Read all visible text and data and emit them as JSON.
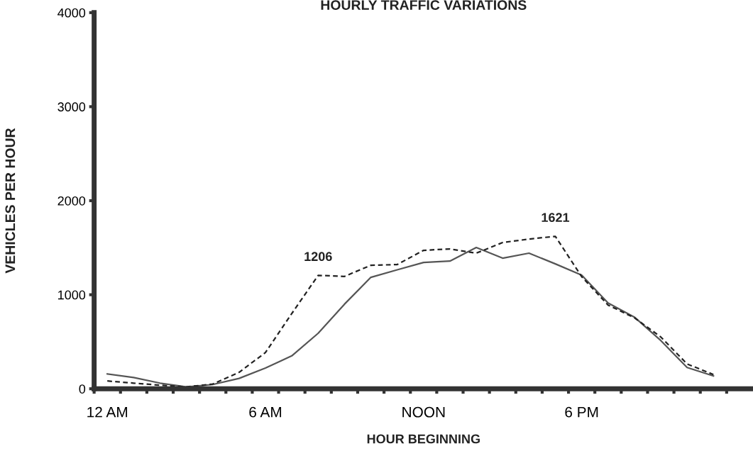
{
  "chart_data": {
    "type": "line",
    "title": "HOURLY TRAFFIC VARIATIONS",
    "xlabel": "HOUR BEGINNING",
    "ylabel": "VEHICLES PER HOUR",
    "categories": [
      "12 AM",
      null,
      null,
      null,
      null,
      null,
      "6 AM",
      null,
      null,
      null,
      null,
      null,
      "NOON",
      null,
      null,
      null,
      null,
      null,
      "6 PM",
      null,
      null,
      null,
      null,
      null
    ],
    "series": [
      {
        "color": "#555555",
        "line_style": "solid",
        "values": [
          158,
          120,
          60,
          20,
          45,
          110,
          220,
          350,
          590,
          900,
          1185,
          1265,
          1343,
          1358,
          1502,
          1389,
          1442,
          1328,
          1208,
          913,
          762,
          513,
          226,
          136
        ]
      },
      {
        "color": "#222222",
        "line_style": "dashed",
        "values": [
          83,
          60,
          38,
          20,
          50,
          175,
          385,
          800,
          1206,
          1195,
          1313,
          1321,
          1472,
          1487,
          1442,
          1555,
          1592,
          1621,
          1192,
          890,
          755,
          551,
          264,
          151
        ],
        "value_labels": [
          null,
          null,
          null,
          null,
          null,
          null,
          null,
          null,
          "1206",
          null,
          null,
          null,
          null,
          null,
          null,
          null,
          null,
          "1621",
          null,
          null,
          null,
          null,
          null,
          null
        ]
      }
    ],
    "ylim": [
      0,
      4000
    ],
    "yticks": [
      0,
      1000,
      2000,
      3000,
      4000
    ],
    "grid": false,
    "legend": false
  }
}
